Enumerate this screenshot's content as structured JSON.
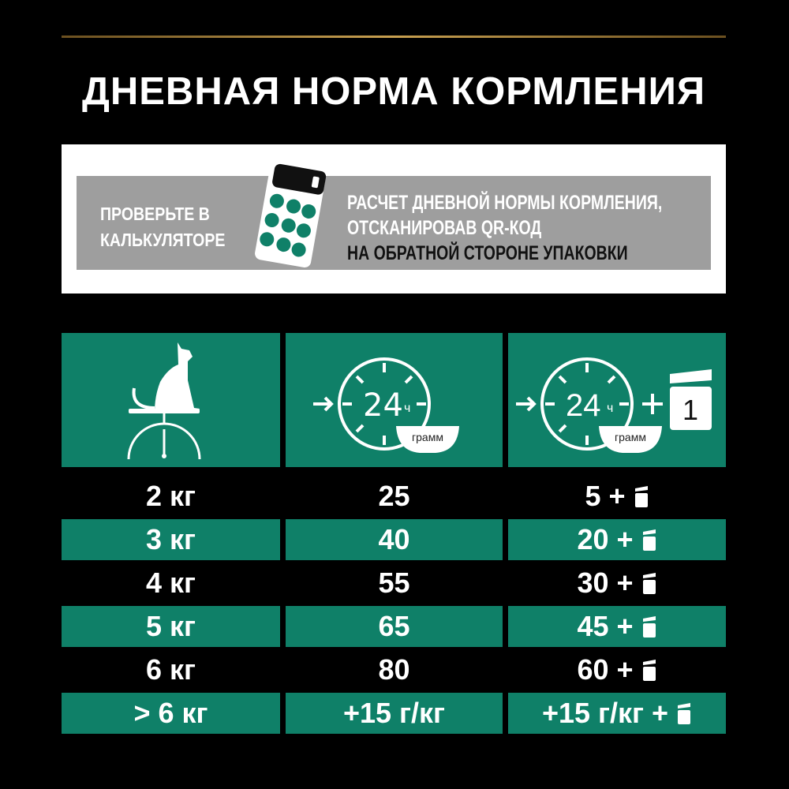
{
  "title": "ДНЕВНАЯ НОРМА КОРМЛЕНИЯ",
  "banner": {
    "check_line1": "ПРОВЕРЬТЕ В",
    "check_line2": "КАЛЬКУЛЯТОРЕ",
    "info_line1": "РАСЧЕТ ДНЕВНОЙ НОРМЫ КОРМЛЕНИЯ,",
    "info_line2": "ОТСКАНИРОВАВ QR-КОД",
    "info_line3": "НА ОБРАТНОЙ СТОРОНЕ УПАКОВКИ"
  },
  "headers": {
    "dry": {
      "hours": "24",
      "hours_unit": "ч",
      "unit": "грамм"
    },
    "mixed": {
      "hours": "24",
      "hours_unit": "ч",
      "unit": "грамм",
      "plus": "+",
      "pouch_count": "1"
    }
  },
  "colors": {
    "green": "#0f8068",
    "gray": "#9e9e9e",
    "gold": "#c8a050"
  },
  "rows": [
    {
      "weight": "2 кг",
      "dry": "25",
      "mixed": "5 +"
    },
    {
      "weight": "3 кг",
      "dry": "40",
      "mixed": "20 +"
    },
    {
      "weight": "4 кг",
      "dry": "55",
      "mixed": "30 +"
    },
    {
      "weight": "5 кг",
      "dry": "65",
      "mixed": "45 +"
    },
    {
      "weight": "6 кг",
      "dry": "80",
      "mixed": "60 +"
    },
    {
      "weight": "> 6 кг",
      "dry": "+15 г/кг",
      "mixed": "+15 г/кг +"
    }
  ]
}
